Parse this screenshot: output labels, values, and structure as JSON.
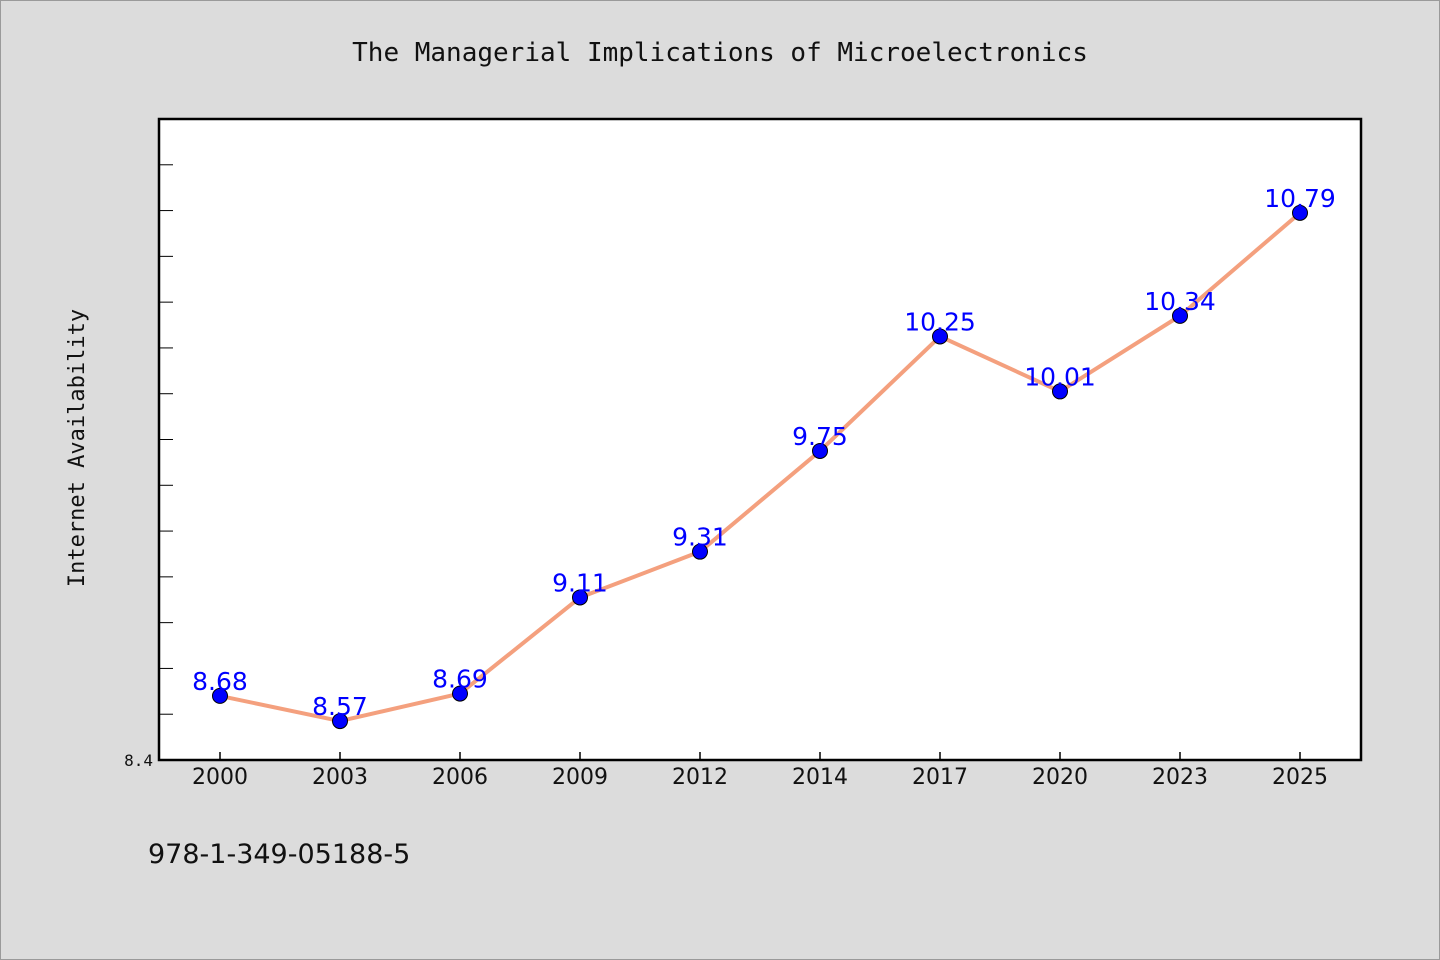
{
  "chart_data": {
    "type": "line",
    "title": "The Managerial Implications of Microelectronics",
    "xlabel": "",
    "ylabel": "Internet Availability",
    "categories": [
      "2000",
      "2003",
      "2006",
      "2009",
      "2012",
      "2014",
      "2017",
      "2020",
      "2023",
      "2025"
    ],
    "series": [
      {
        "values": [
          8.68,
          8.57,
          8.69,
          9.11,
          9.31,
          9.75,
          10.25,
          10.01,
          10.34,
          10.79
        ],
        "labels": [
          "8.68",
          "8.57",
          "8.69",
          "9.11",
          "9.31",
          "9.75",
          "10.25",
          "10.01",
          "10.34",
          "10.79"
        ],
        "line_color": "#f4a07e",
        "marker_color": "#0000ff"
      }
    ],
    "ylim": [
      8.4,
      11.2
    ],
    "ytick_labels": [
      "8.4"
    ],
    "minor_tick_step": 0.2,
    "grid": false,
    "legend": "none",
    "plot_background": "#ffffff",
    "figure_background": "#dcdcdc",
    "label_color": "#0000ff"
  },
  "footer": {
    "isbn": "978-1-349-05188-5"
  }
}
